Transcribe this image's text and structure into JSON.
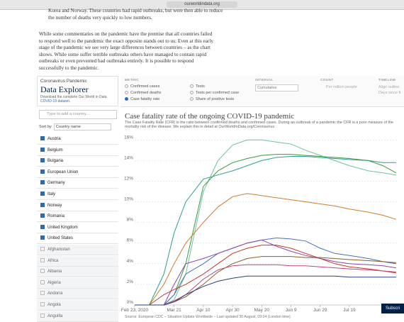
{
  "browser": {
    "url": "ourworldindata.org"
  },
  "article": {
    "paragraphs": [
      "Korea and Norway. These countries had rapid outbreaks, but were then able to reduce the number of deaths very quickly to low numbers.",
      "While some commentaries on the pandemic have the premise that all countries failed to respond well to the pandemic the exact opposite stands out to us: Even at this early stage of the pandemic we see very large differences between countries – as the chart shows. While some suffer terrible outbreaks others have managed to contain rapid outbreaks or even prevented bad outbreaks entirely. It is possible to respond successfully to the pandemic."
    ]
  },
  "explorer": {
    "kicker": "Coronavirus Pandemic",
    "title": "Data Explorer",
    "download": "Download the complete Our World in Data",
    "dataset_link": "COVID-19 dataset.",
    "metric": {
      "label": "METRIC",
      "options": [
        {
          "label": "Confirmed cases",
          "selected": false
        },
        {
          "label": "Tests",
          "selected": false
        },
        {
          "label": "Confirmed deaths",
          "selected": false
        },
        {
          "label": "Tests per confirmed case",
          "selected": false
        },
        {
          "label": "Case fatality rate",
          "selected": true
        },
        {
          "label": "Share of positive tests",
          "selected": false
        }
      ]
    },
    "interval": {
      "label": "INTERVAL",
      "value": "Cumulative"
    },
    "count": {
      "label": "COUNT",
      "value": "Per million people"
    },
    "timeline": {
      "label": "TIMELINE",
      "options": [
        "Align outbre",
        "Days since fi"
      ]
    },
    "search_placeholder": "Type to add a country...",
    "sort_label": "Sort by",
    "sort_value": "Country name",
    "countries": [
      {
        "name": "Austria",
        "checked": true
      },
      {
        "name": "Belgium",
        "checked": true
      },
      {
        "name": "Bulgaria",
        "checked": true
      },
      {
        "name": "European Union",
        "checked": true
      },
      {
        "name": "Germany",
        "checked": true
      },
      {
        "name": "Italy",
        "checked": true
      },
      {
        "name": "Norway",
        "checked": true
      },
      {
        "name": "Romania",
        "checked": true
      },
      {
        "name": "United Kingdom",
        "checked": true
      },
      {
        "name": "United States",
        "checked": true
      },
      {
        "name": "Afghanistan",
        "checked": false
      },
      {
        "name": "Africa",
        "checked": false
      },
      {
        "name": "Albania",
        "checked": false
      },
      {
        "name": "Algeria",
        "checked": false
      },
      {
        "name": "Andorra",
        "checked": false
      },
      {
        "name": "Angola",
        "checked": false
      },
      {
        "name": "Anguilla",
        "checked": false
      }
    ],
    "subscribe": "Subscri"
  },
  "chart_data": {
    "type": "line",
    "title": "Case fatality rate of the ongoing COVID-19 pandemic",
    "subtitle": "The Case Fatality Rate (CFR) is the ratio between confirmed deaths and confirmed cases. During an outbreak of a pandemic the CFR is a poor measure of the mortality risk of the disease. We explain this in detail at OurWorldInData.org/Coronavirus",
    "source": "Source: European CDC – Situation Update Worldwide – Last updated 30 August, 09:04 (London time)",
    "x": [
      0,
      10,
      20,
      27,
      35,
      47,
      57,
      67,
      77,
      87,
      97,
      107,
      117,
      127,
      137,
      147,
      160,
      170,
      179
    ],
    "xlim": [
      0,
      180
    ],
    "xticks": [
      {
        "value": 0,
        "label": "Feb 23, 2020"
      },
      {
        "value": 27,
        "label": "Mar 21"
      },
      {
        "value": 47,
        "label": "Apr 10"
      },
      {
        "value": 67,
        "label": "Apr 30"
      },
      {
        "value": 87,
        "label": "May 20"
      },
      {
        "value": 107,
        "label": "Jun 9"
      },
      {
        "value": 127,
        "label": "Jun 29"
      },
      {
        "value": 147,
        "label": "Jul 19"
      }
    ],
    "ylim": [
      0,
      16.5
    ],
    "yticks": [
      {
        "value": 0,
        "label": "0%"
      },
      {
        "value": 2,
        "label": "2%"
      },
      {
        "value": 4,
        "label": "4%"
      },
      {
        "value": 6,
        "label": "6%"
      },
      {
        "value": 8,
        "label": "8%"
      },
      {
        "value": 10,
        "label": "10%"
      },
      {
        "value": 12,
        "label": "12%"
      },
      {
        "value": 14,
        "label": "14%"
      },
      {
        "value": 16,
        "label": "16%"
      }
    ],
    "grid": true,
    "series": [
      {
        "name": "Belgium",
        "color": "#6cc3a0",
        "values": [
          0,
          0,
          0,
          0.5,
          3,
          11,
          14,
          15.5,
          16,
          16,
          15.8,
          15.6,
          15,
          14.5,
          14,
          13.5,
          13,
          12.8,
          12.6
        ]
      },
      {
        "name": "Italy",
        "color": "#2f9e8f",
        "values": [
          0,
          0,
          3,
          7,
          10,
          12.2,
          12.6,
          13,
          13.5,
          14,
          14.3,
          14.4,
          14.4,
          14.3,
          14.2,
          14.1,
          14,
          13.8,
          13.8
        ]
      },
      {
        "name": "United Kingdom",
        "color": "#3a9a3e",
        "values": [
          0,
          0,
          0,
          1,
          4,
          11.5,
          13,
          13.8,
          14.2,
          14.5,
          14.6,
          14.6,
          14.5,
          14.4,
          14.3,
          14.2,
          14,
          13.5,
          12.8
        ]
      },
      {
        "name": "European Union",
        "color": "#d07a2a",
        "values": [
          0,
          0,
          2,
          4,
          6,
          8,
          9.5,
          10.5,
          10.8,
          10.6,
          10.4,
          10.2,
          10,
          9.8,
          9.6,
          9.3,
          9,
          8.7,
          8.3
        ]
      },
      {
        "name": "Romania",
        "color": "#4a6fb5",
        "values": [
          0,
          0,
          0,
          1,
          3,
          4,
          5,
          5.5,
          6,
          6.3,
          6.5,
          6.4,
          6.2,
          5.5,
          5,
          4.8,
          4.5,
          4.2,
          4
        ]
      },
      {
        "name": "Bulgaria",
        "color": "#8e44ad",
        "values": [
          0,
          0,
          0,
          2,
          4,
          4.5,
          5,
          5.5,
          6,
          6.3,
          5.7,
          5.2,
          4.8,
          4.5,
          4.2,
          4,
          3.9,
          3.8,
          3.6
        ]
      },
      {
        "name": "United States",
        "color": "#c0392b",
        "values": [
          0,
          0,
          1,
          1.5,
          2,
          3,
          4,
          5,
          5.5,
          5.8,
          5.8,
          5.5,
          5,
          4.5,
          4,
          3.7,
          3.5,
          3.3,
          3.1
        ]
      },
      {
        "name": "Germany",
        "color": "#8b5a2b",
        "values": [
          0,
          0,
          0,
          0.3,
          0.8,
          2,
          3.2,
          4,
          4.5,
          4.7,
          4.7,
          4.7,
          4.6,
          4.6,
          4.5,
          4.4,
          4.3,
          4.2,
          4.1
        ]
      },
      {
        "name": "Austria",
        "color": "#c2417f",
        "values": [
          0,
          0,
          0,
          0.4,
          1,
          2.5,
          3.4,
          3.8,
          3.9,
          3.9,
          3.9,
          3.8,
          3.8,
          3.7,
          3.6,
          3.5,
          3.4,
          3.3,
          3.2
        ]
      },
      {
        "name": "Norway",
        "color": "#2c3e80",
        "values": [
          0,
          0,
          0,
          0.3,
          1,
          1.8,
          2.3,
          2.6,
          2.8,
          2.8,
          2.8,
          2.8,
          2.8,
          2.8,
          2.8,
          2.7,
          2.7,
          2.7,
          2.7
        ]
      }
    ]
  }
}
